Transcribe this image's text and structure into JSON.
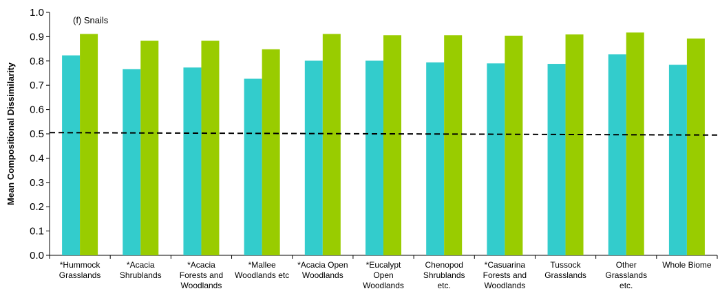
{
  "chart_data": {
    "type": "bar",
    "panel_label": "(f) Snails",
    "ylabel": "Mean Compositional Dissimilarity",
    "xlabel": "",
    "ylim": [
      0,
      1.0
    ],
    "yticks": [
      "0.0",
      "0.1",
      "0.2",
      "0.3",
      "0.4",
      "0.5",
      "0.6",
      "0.7",
      "0.8",
      "0.9",
      "1.0"
    ],
    "grid": false,
    "legend": "none",
    "categories": [
      [
        "*Hummock",
        "Grasslands"
      ],
      [
        "*Acacia",
        "Shrublands"
      ],
      [
        "*Acacia",
        "Forests and",
        "Woodlands"
      ],
      [
        "*Mallee",
        "Woodlands etc"
      ],
      [
        "*Acacia Open",
        "Woodlands"
      ],
      [
        "*Eucalypt",
        "Open",
        "Woodlands"
      ],
      [
        "Chenopod",
        "Shrublands",
        "etc."
      ],
      [
        "*Casuarina",
        "Forests and",
        "Woodlands"
      ],
      [
        "Tussock",
        "Grasslands"
      ],
      [
        "Other",
        "Grasslands",
        "etc."
      ],
      [
        "Whole Biome"
      ]
    ],
    "series": [
      {
        "color": "#33CCCC",
        "values": [
          0.823,
          0.766,
          0.773,
          0.727,
          0.801,
          0.801,
          0.794,
          0.79,
          0.788,
          0.827,
          0.784
        ]
      },
      {
        "color": "#99CC00",
        "values": [
          0.911,
          0.883,
          0.883,
          0.848,
          0.911,
          0.906,
          0.906,
          0.904,
          0.909,
          0.917,
          0.892
        ]
      }
    ],
    "reference_line": {
      "style": "dashed",
      "color": "#000000",
      "y_start": 0.505,
      "y_end": 0.495
    }
  }
}
